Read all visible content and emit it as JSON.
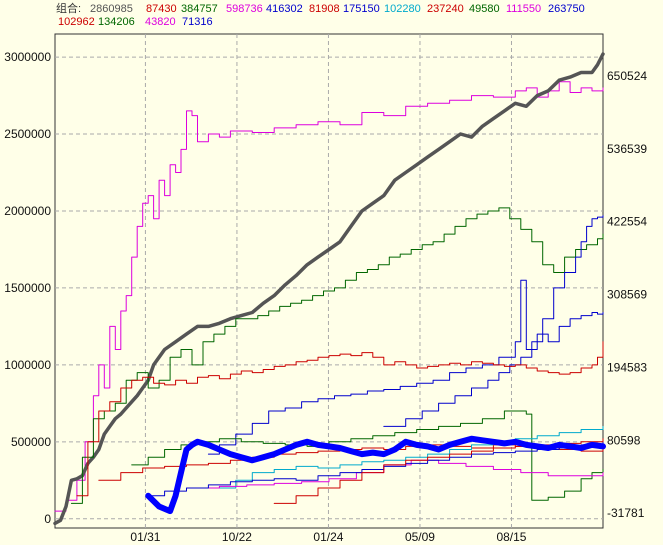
{
  "legend": {
    "prefix": "组合:",
    "row1": [
      {
        "value": "2860985",
        "color": "#555555"
      },
      {
        "value": "87430",
        "color": "#cc0000"
      },
      {
        "value": "384757",
        "color": "#006600"
      },
      {
        "value": "598736",
        "color": "#dd00dd"
      },
      {
        "value": "416302",
        "color": "#0000cc"
      },
      {
        "value": "81908",
        "color": "#cc0000"
      },
      {
        "value": "175150",
        "color": "#0000cc"
      },
      {
        "value": "102280",
        "color": "#00aacc"
      },
      {
        "value": "237240",
        "color": "#cc0000"
      },
      {
        "value": "49580",
        "color": "#006600"
      },
      {
        "value": "111550",
        "color": "#dd00dd"
      },
      {
        "value": "263750",
        "color": "#0000cc"
      }
    ],
    "row2": [
      {
        "value": "102962",
        "color": "#cc0000"
      },
      {
        "value": "134206",
        "color": "#006600"
      },
      {
        "value": "43820",
        "color": "#dd00dd"
      },
      {
        "value": "71316",
        "color": "#0000cc"
      }
    ]
  },
  "chart_data": {
    "type": "line",
    "title": "",
    "xlabel": "",
    "ylabel": "",
    "x_ticks": [
      "01/31",
      "10/22",
      "01/24",
      "05/09",
      "08/15"
    ],
    "y_left": {
      "ticks": [
        0,
        500000,
        1000000,
        1500000,
        2000000,
        2500000,
        3000000
      ],
      "labels": [
        "0",
        "500000",
        "1000000",
        "1500000",
        "2000000",
        "2500000",
        "3000000"
      ],
      "ylim": [
        -60000,
        3150000
      ]
    },
    "y_right": {
      "ticks": [
        -31781,
        80598,
        194583,
        308569,
        422554,
        536539,
        650524
      ],
      "labels": [
        "-31781",
        "80598",
        "194583",
        "308569",
        "422554",
        "536539",
        "650524"
      ]
    },
    "grid": true,
    "x_range": [
      0,
      100
    ],
    "series": [
      {
        "axis": "left",
        "color": "#dd00dd",
        "width": 1,
        "step": true,
        "x": [
          0,
          2,
          4,
          5.5,
          7,
          8,
          9,
          10,
          11,
          12,
          13,
          14,
          15,
          16,
          17,
          18,
          19,
          20,
          21,
          22,
          23,
          24,
          25,
          26,
          28,
          30,
          32,
          36,
          40,
          44,
          48,
          52,
          56,
          60,
          64,
          68,
          72,
          76,
          80,
          84,
          86,
          88,
          90,
          92,
          94,
          96,
          98,
          100
        ],
        "y": [
          50000,
          120000,
          250000,
          500000,
          800000,
          1000000,
          850000,
          1250000,
          1100000,
          1350000,
          1450000,
          1700000,
          1900000,
          2050000,
          2100000,
          1950000,
          2200000,
          2100000,
          2300000,
          2250000,
          2400000,
          2650000,
          2620000,
          2450000,
          2500000,
          2480000,
          2520000,
          2510000,
          2540000,
          2560000,
          2580000,
          2560000,
          2640000,
          2620000,
          2680000,
          2700000,
          2720000,
          2750000,
          2740000,
          2780000,
          2800000,
          2740000,
          2780000,
          2840000,
          2770000,
          2800000,
          2780000,
          2800000
        ]
      },
      {
        "axis": "left",
        "color": "#555555",
        "width": 3.5,
        "step": false,
        "x": [
          0,
          1,
          2,
          3,
          4,
          5,
          6,
          7,
          8,
          9,
          10,
          11,
          12,
          13,
          14,
          15,
          16,
          17,
          18,
          19,
          20,
          22,
          24,
          26,
          28,
          30,
          32,
          34,
          36,
          38,
          40,
          42,
          44,
          46,
          48,
          50,
          52,
          54,
          56,
          58,
          60,
          62,
          64,
          66,
          68,
          70,
          72,
          74,
          76,
          78,
          80,
          82,
          84,
          86,
          88,
          90,
          92,
          94,
          96,
          98,
          99,
          100
        ],
        "y": [
          -30000,
          -10000,
          80000,
          250000,
          260000,
          280000,
          360000,
          400000,
          450000,
          550000,
          600000,
          650000,
          680000,
          720000,
          760000,
          800000,
          850000,
          900000,
          1000000,
          1050000,
          1100000,
          1150000,
          1200000,
          1250000,
          1250000,
          1270000,
          1300000,
          1320000,
          1340000,
          1400000,
          1450000,
          1520000,
          1580000,
          1650000,
          1700000,
          1750000,
          1800000,
          1900000,
          2000000,
          2050000,
          2100000,
          2200000,
          2250000,
          2300000,
          2350000,
          2400000,
          2450000,
          2500000,
          2480000,
          2550000,
          2600000,
          2650000,
          2700000,
          2680000,
          2750000,
          2780000,
          2850000,
          2870000,
          2900000,
          2900000,
          2950000,
          3020000
        ]
      },
      {
        "axis": "left",
        "color": "#006600",
        "width": 1,
        "step": true,
        "x": [
          3,
          5,
          7,
          9,
          11,
          13,
          15,
          17,
          19,
          21,
          23,
          25,
          27,
          29,
          31,
          33,
          35,
          37,
          39,
          41,
          43,
          45,
          47,
          49,
          51,
          53,
          55,
          57,
          59,
          61,
          63,
          65,
          67,
          69,
          71,
          73,
          75,
          77,
          79,
          81,
          83,
          85,
          87,
          89,
          91,
          93,
          95,
          97,
          99,
          100
        ],
        "y": [
          100000,
          400000,
          650000,
          700000,
          750000,
          900000,
          950000,
          850000,
          900000,
          1050000,
          1100000,
          1000000,
          1150000,
          1200000,
          1250000,
          1300000,
          1300000,
          1320000,
          1350000,
          1380000,
          1400000,
          1420000,
          1450000,
          1480000,
          1500000,
          1550000,
          1600000,
          1620000,
          1650000,
          1700000,
          1720000,
          1750000,
          1780000,
          1800000,
          1850000,
          1900000,
          1950000,
          1980000,
          2000000,
          2020000,
          1950000,
          1880000,
          1800000,
          1650000,
          1600000,
          1700000,
          1750000,
          1780000,
          1820000,
          1850000
        ]
      },
      {
        "axis": "left",
        "color": "#0000cc",
        "width": 1,
        "step": true,
        "x": [
          28,
          30,
          33,
          36,
          39,
          42,
          45,
          48,
          51,
          54,
          57,
          60,
          63,
          66,
          69,
          72,
          75,
          78,
          81,
          84,
          85,
          86,
          88,
          90,
          92,
          94,
          96,
          98,
          99,
          100
        ],
        "y": [
          420000,
          480000,
          550000,
          620000,
          700000,
          720000,
          760000,
          780000,
          800000,
          810000,
          830000,
          840000,
          860000,
          880000,
          900000,
          950000,
          980000,
          1000000,
          1050000,
          1150000,
          1550000,
          1100000,
          1200000,
          1150000,
          1250000,
          1300000,
          1320000,
          1340000,
          1330000,
          1340000
        ]
      },
      {
        "axis": "left",
        "color": "#0000cc",
        "width": 1,
        "step": true,
        "x": [
          60,
          64,
          67,
          70,
          73,
          76,
          79,
          81,
          83,
          85,
          87,
          89,
          91,
          93,
          95,
          96,
          97,
          98,
          99,
          100
        ],
        "y": [
          600000,
          650000,
          700000,
          750000,
          800000,
          850000,
          900000,
          950000,
          1000000,
          1050000,
          1150000,
          1300000,
          1500000,
          1600000,
          1700000,
          1800000,
          1900000,
          1950000,
          1960000,
          1970000
        ]
      },
      {
        "axis": "left",
        "color": "#cc0000",
        "width": 1,
        "step": true,
        "x": [
          4,
          6,
          8,
          10,
          12,
          14,
          16,
          18,
          20,
          22,
          24,
          26,
          28,
          30,
          32,
          34,
          36,
          38,
          40,
          42,
          44,
          46,
          48,
          50,
          52,
          54,
          56,
          58,
          60,
          62,
          64,
          66,
          68,
          70,
          72,
          74,
          76,
          78,
          80,
          82,
          84,
          86,
          88,
          90,
          92,
          94,
          96,
          98,
          99,
          100
        ],
        "y": [
          150000,
          500000,
          700000,
          760000,
          850000,
          900000,
          920000,
          880000,
          870000,
          900000,
          880000,
          920000,
          930000,
          910000,
          940000,
          960000,
          950000,
          970000,
          990000,
          1000000,
          1020000,
          1030000,
          1050000,
          1060000,
          1070000,
          1060000,
          1080000,
          1050000,
          1000000,
          1020000,
          1000000,
          980000,
          990000,
          1000000,
          1010000,
          1000000,
          1020000,
          1010000,
          1000000,
          990000,
          1000000,
          980000,
          960000,
          950000,
          940000,
          950000,
          980000,
          1000000,
          1050000,
          1150000
        ]
      },
      {
        "axis": "left",
        "color": "#cc0000",
        "width": 1,
        "step": true,
        "x": [
          8,
          12,
          16,
          20,
          24,
          28,
          32,
          36,
          40,
          44,
          48,
          52,
          56,
          60,
          64,
          68,
          72,
          76,
          80,
          84,
          88,
          92,
          96,
          100
        ],
        "y": [
          250000,
          300000,
          330000,
          340000,
          350000,
          360000,
          380000,
          400000,
          420000,
          430000,
          440000,
          450000,
          460000,
          450000,
          470000,
          480000,
          470000,
          460000,
          480000,
          470000,
          460000,
          450000,
          440000,
          460000
        ]
      },
      {
        "axis": "left",
        "color": "#006600",
        "width": 1,
        "step": true,
        "x": [
          14,
          17,
          20,
          23,
          26,
          30,
          34,
          38,
          42,
          46,
          50,
          54,
          58,
          62,
          66,
          70,
          74,
          78,
          82,
          86,
          87,
          90,
          93,
          96,
          98,
          100
        ],
        "y": [
          350000,
          400000,
          450000,
          480000,
          500000,
          520000,
          500000,
          490000,
          480000,
          470000,
          500000,
          520000,
          540000,
          560000,
          580000,
          600000,
          620000,
          650000,
          700000,
          680000,
          120000,
          140000,
          180000,
          260000,
          300000,
          320000
        ]
      },
      {
        "axis": "left",
        "color": "#00aacc",
        "width": 1,
        "step": true,
        "x": [
          30,
          33,
          36,
          40,
          44,
          48,
          52,
          56,
          60,
          64,
          68,
          72,
          76,
          80,
          84,
          88,
          92,
          96,
          100
        ],
        "y": [
          200000,
          250000,
          300000,
          320000,
          340000,
          330000,
          350000,
          370000,
          380000,
          400000,
          420000,
          450000,
          480000,
          500000,
          520000,
          540000,
          560000,
          580000,
          600000
        ]
      },
      {
        "axis": "left",
        "color": "#dd00dd",
        "width": 1,
        "step": true,
        "x": [
          25,
          30,
          35,
          40,
          45,
          50,
          55,
          60,
          65,
          70,
          75,
          80,
          85,
          90,
          95,
          100
        ],
        "y": [
          200000,
          210000,
          220000,
          230000,
          240000,
          260000,
          300000,
          350000,
          380000,
          360000,
          340000,
          320000,
          300000,
          280000,
          280000,
          300000
        ]
      },
      {
        "axis": "left",
        "color": "#0000cc",
        "width": 1,
        "step": true,
        "x": [
          17,
          20,
          24,
          28,
          32,
          36,
          40,
          44,
          48,
          52,
          56,
          60,
          64,
          68,
          72,
          76,
          80,
          84,
          88,
          92,
          96,
          100
        ],
        "y": [
          150000,
          180000,
          200000,
          220000,
          240000,
          250000,
          260000,
          250000,
          280000,
          300000,
          320000,
          340000,
          360000,
          380000,
          400000,
          420000,
          430000,
          440000,
          450000,
          460000,
          480000,
          500000
        ]
      },
      {
        "axis": "left",
        "color": "#cc0000",
        "width": 1,
        "step": true,
        "x": [
          40,
          44,
          48,
          52,
          56,
          60,
          64,
          68,
          72,
          76,
          80,
          84,
          88,
          92,
          96,
          100
        ],
        "y": [
          100000,
          150000,
          200000,
          250000,
          300000,
          350000,
          380000,
          400000,
          420000,
          440000,
          460000,
          470000,
          480000,
          490000,
          500000,
          520000
        ]
      },
      {
        "axis": "left",
        "color": "#0000ff",
        "width": 6,
        "step": false,
        "x": [
          17,
          19,
          21,
          22,
          23,
          24,
          25,
          26,
          28,
          30,
          32,
          34,
          36,
          38,
          40,
          42,
          44,
          46,
          48,
          50,
          52,
          54,
          56,
          58,
          60,
          62,
          64,
          66,
          68,
          70,
          72,
          74,
          76,
          78,
          80,
          82,
          84,
          86,
          88,
          90,
          92,
          94,
          96,
          98,
          100
        ],
        "y": [
          150000,
          80000,
          50000,
          150000,
          300000,
          450000,
          480000,
          500000,
          480000,
          450000,
          420000,
          400000,
          380000,
          400000,
          420000,
          450000,
          480000,
          500000,
          480000,
          470000,
          460000,
          440000,
          420000,
          430000,
          420000,
          450000,
          500000,
          480000,
          470000,
          450000,
          480000,
          500000,
          520000,
          510000,
          500000,
          490000,
          500000,
          480000,
          470000,
          460000,
          480000,
          470000,
          460000,
          480000,
          470000
        ]
      }
    ]
  }
}
